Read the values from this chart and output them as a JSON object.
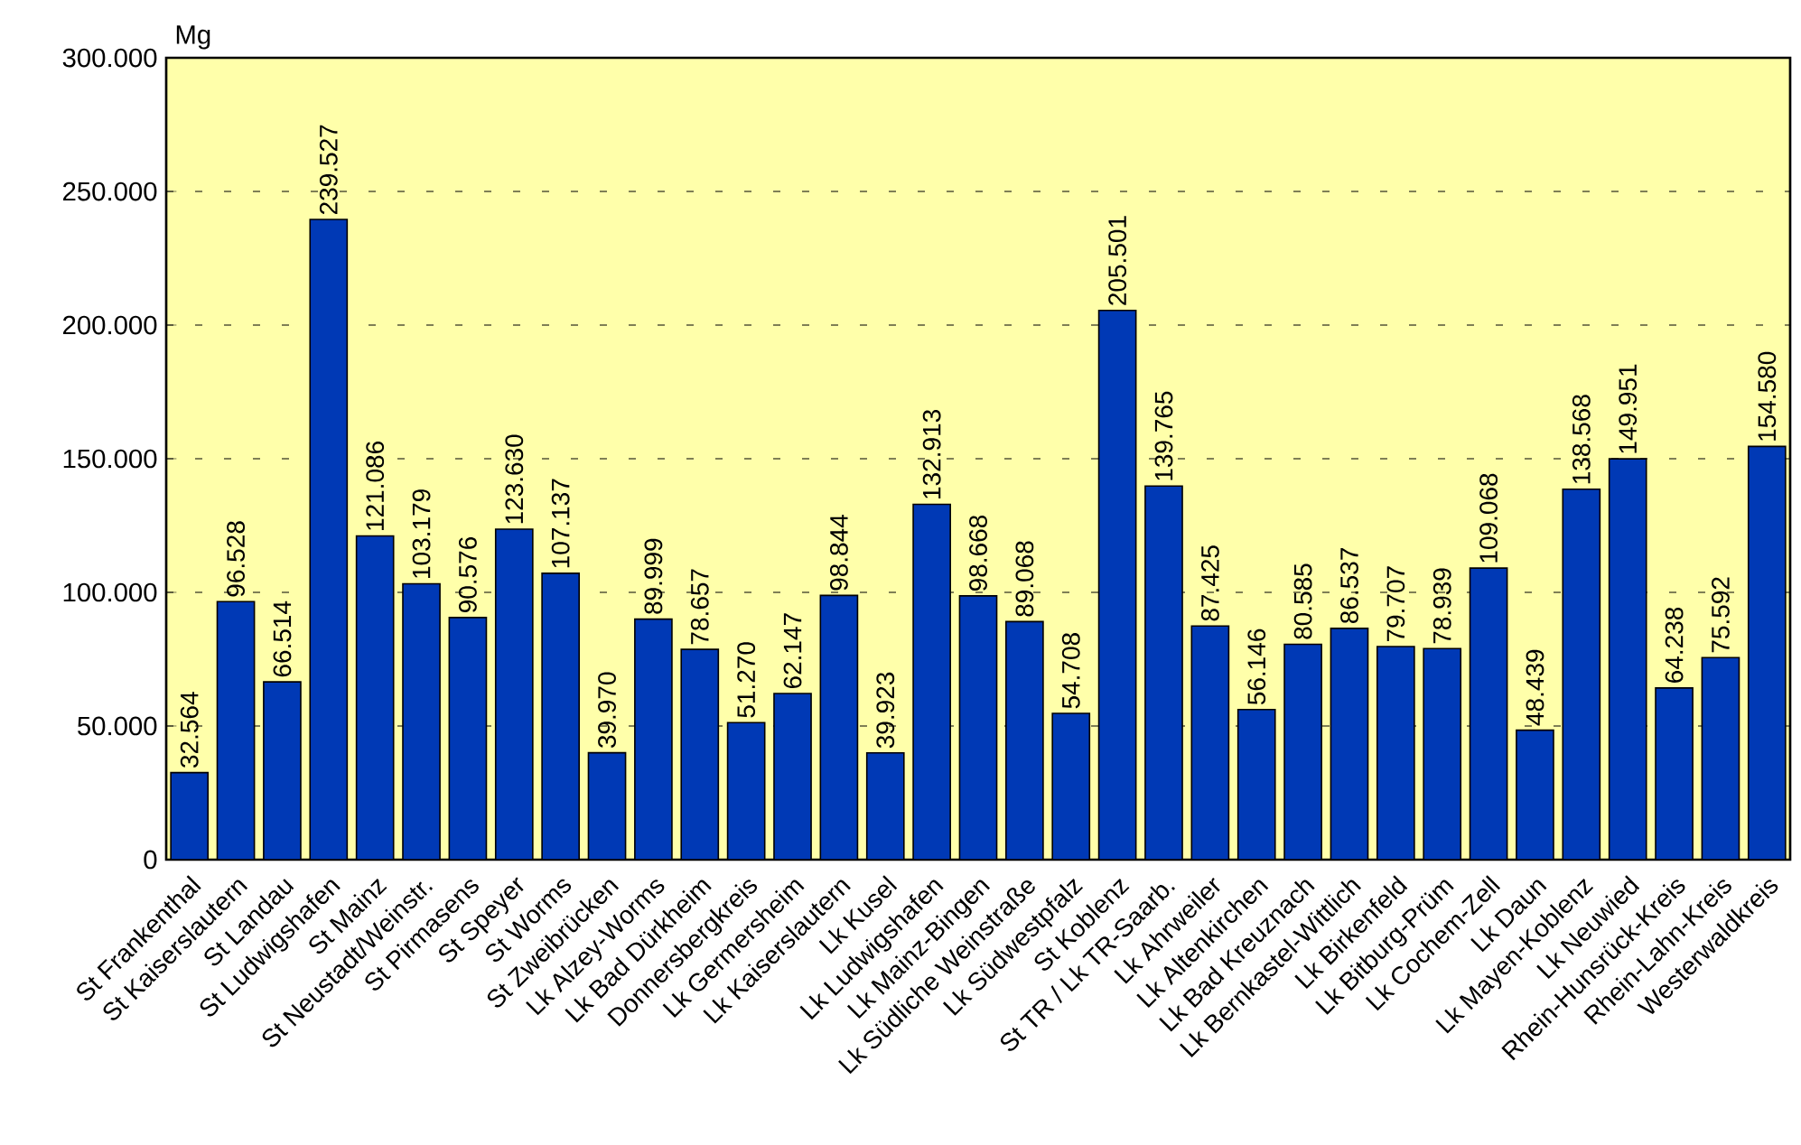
{
  "chart_data": {
    "type": "bar",
    "ylabel": "Mg",
    "categories": [
      "St Frankenthal",
      "St Kaiserslautern",
      "St Landau",
      "St Ludwigshafen",
      "St Mainz",
      "St Neustadt/Weinstr.",
      "St Pirmasens",
      "St Speyer",
      "St Worms",
      "St Zweibrücken",
      "Lk Alzey-Worms",
      "Lk Bad Dürkheim",
      "Donnersbergkreis",
      "Lk Germersheim",
      "Lk Kaiserslautern",
      "Lk Kusel",
      "Lk Ludwigshafen",
      "Lk Mainz-Bingen",
      "Lk Südliche Weinstraße",
      "Lk Südwestpfalz",
      "St Koblenz",
      "St TR / Lk TR-Saarb.",
      "Lk Ahrweiler",
      "Lk Altenkirchen",
      "Lk Bad Kreuznach",
      "Lk Bernkastel-Wittlich",
      "Lk Birkenfeld",
      "Lk Bitburg-Prüm",
      "Lk Cochem-Zell",
      "Lk Daun",
      "Lk Mayen-Koblenz",
      "Lk Neuwied",
      "Rhein-Hunsrück-Kreis",
      "Rhein-Lahn-Kreis",
      "Westerwaldkreis"
    ],
    "values": [
      32564,
      96528,
      66514,
      239527,
      121086,
      103179,
      90576,
      123630,
      107137,
      39970,
      89999,
      78657,
      51270,
      62147,
      98844,
      39923,
      132913,
      98668,
      89068,
      54708,
      205501,
      139765,
      87425,
      56146,
      80585,
      86537,
      79707,
      78939,
      109068,
      48439,
      138568,
      149951,
      64238,
      75592,
      154580
    ],
    "value_labels": [
      "32.564",
      "96.528",
      "66.514",
      "239.527",
      "121.086",
      "103.179",
      "90.576",
      "123.630",
      "107.137",
      "39.970",
      "89.999",
      "78.657",
      "51.270",
      "62.147",
      "98.844",
      "39.923",
      "132.913",
      "98.668",
      "89.068",
      "54.708",
      "205.501",
      "139.765",
      "87.425",
      "56.146",
      "80.585",
      "86.537",
      "79.707",
      "78.939",
      "109.068",
      "48.439",
      "138.568",
      "149.951",
      "64.238",
      "75.592",
      "154.580"
    ],
    "color": "#0039b5",
    "ylim": [
      0,
      300000
    ],
    "yticks": [
      0,
      {
        "value": 50000,
        "label": "50.000"
      },
      {
        "value": 100000,
        "label": "100.000"
      },
      {
        "value": 150000,
        "label": "150.000"
      },
      {
        "value": 200000,
        "label": "200.000"
      },
      {
        "value": 250000,
        "label": "250.000"
      },
      {
        "value": 300000,
        "label": "300.000"
      }
    ],
    "grid": "y"
  }
}
